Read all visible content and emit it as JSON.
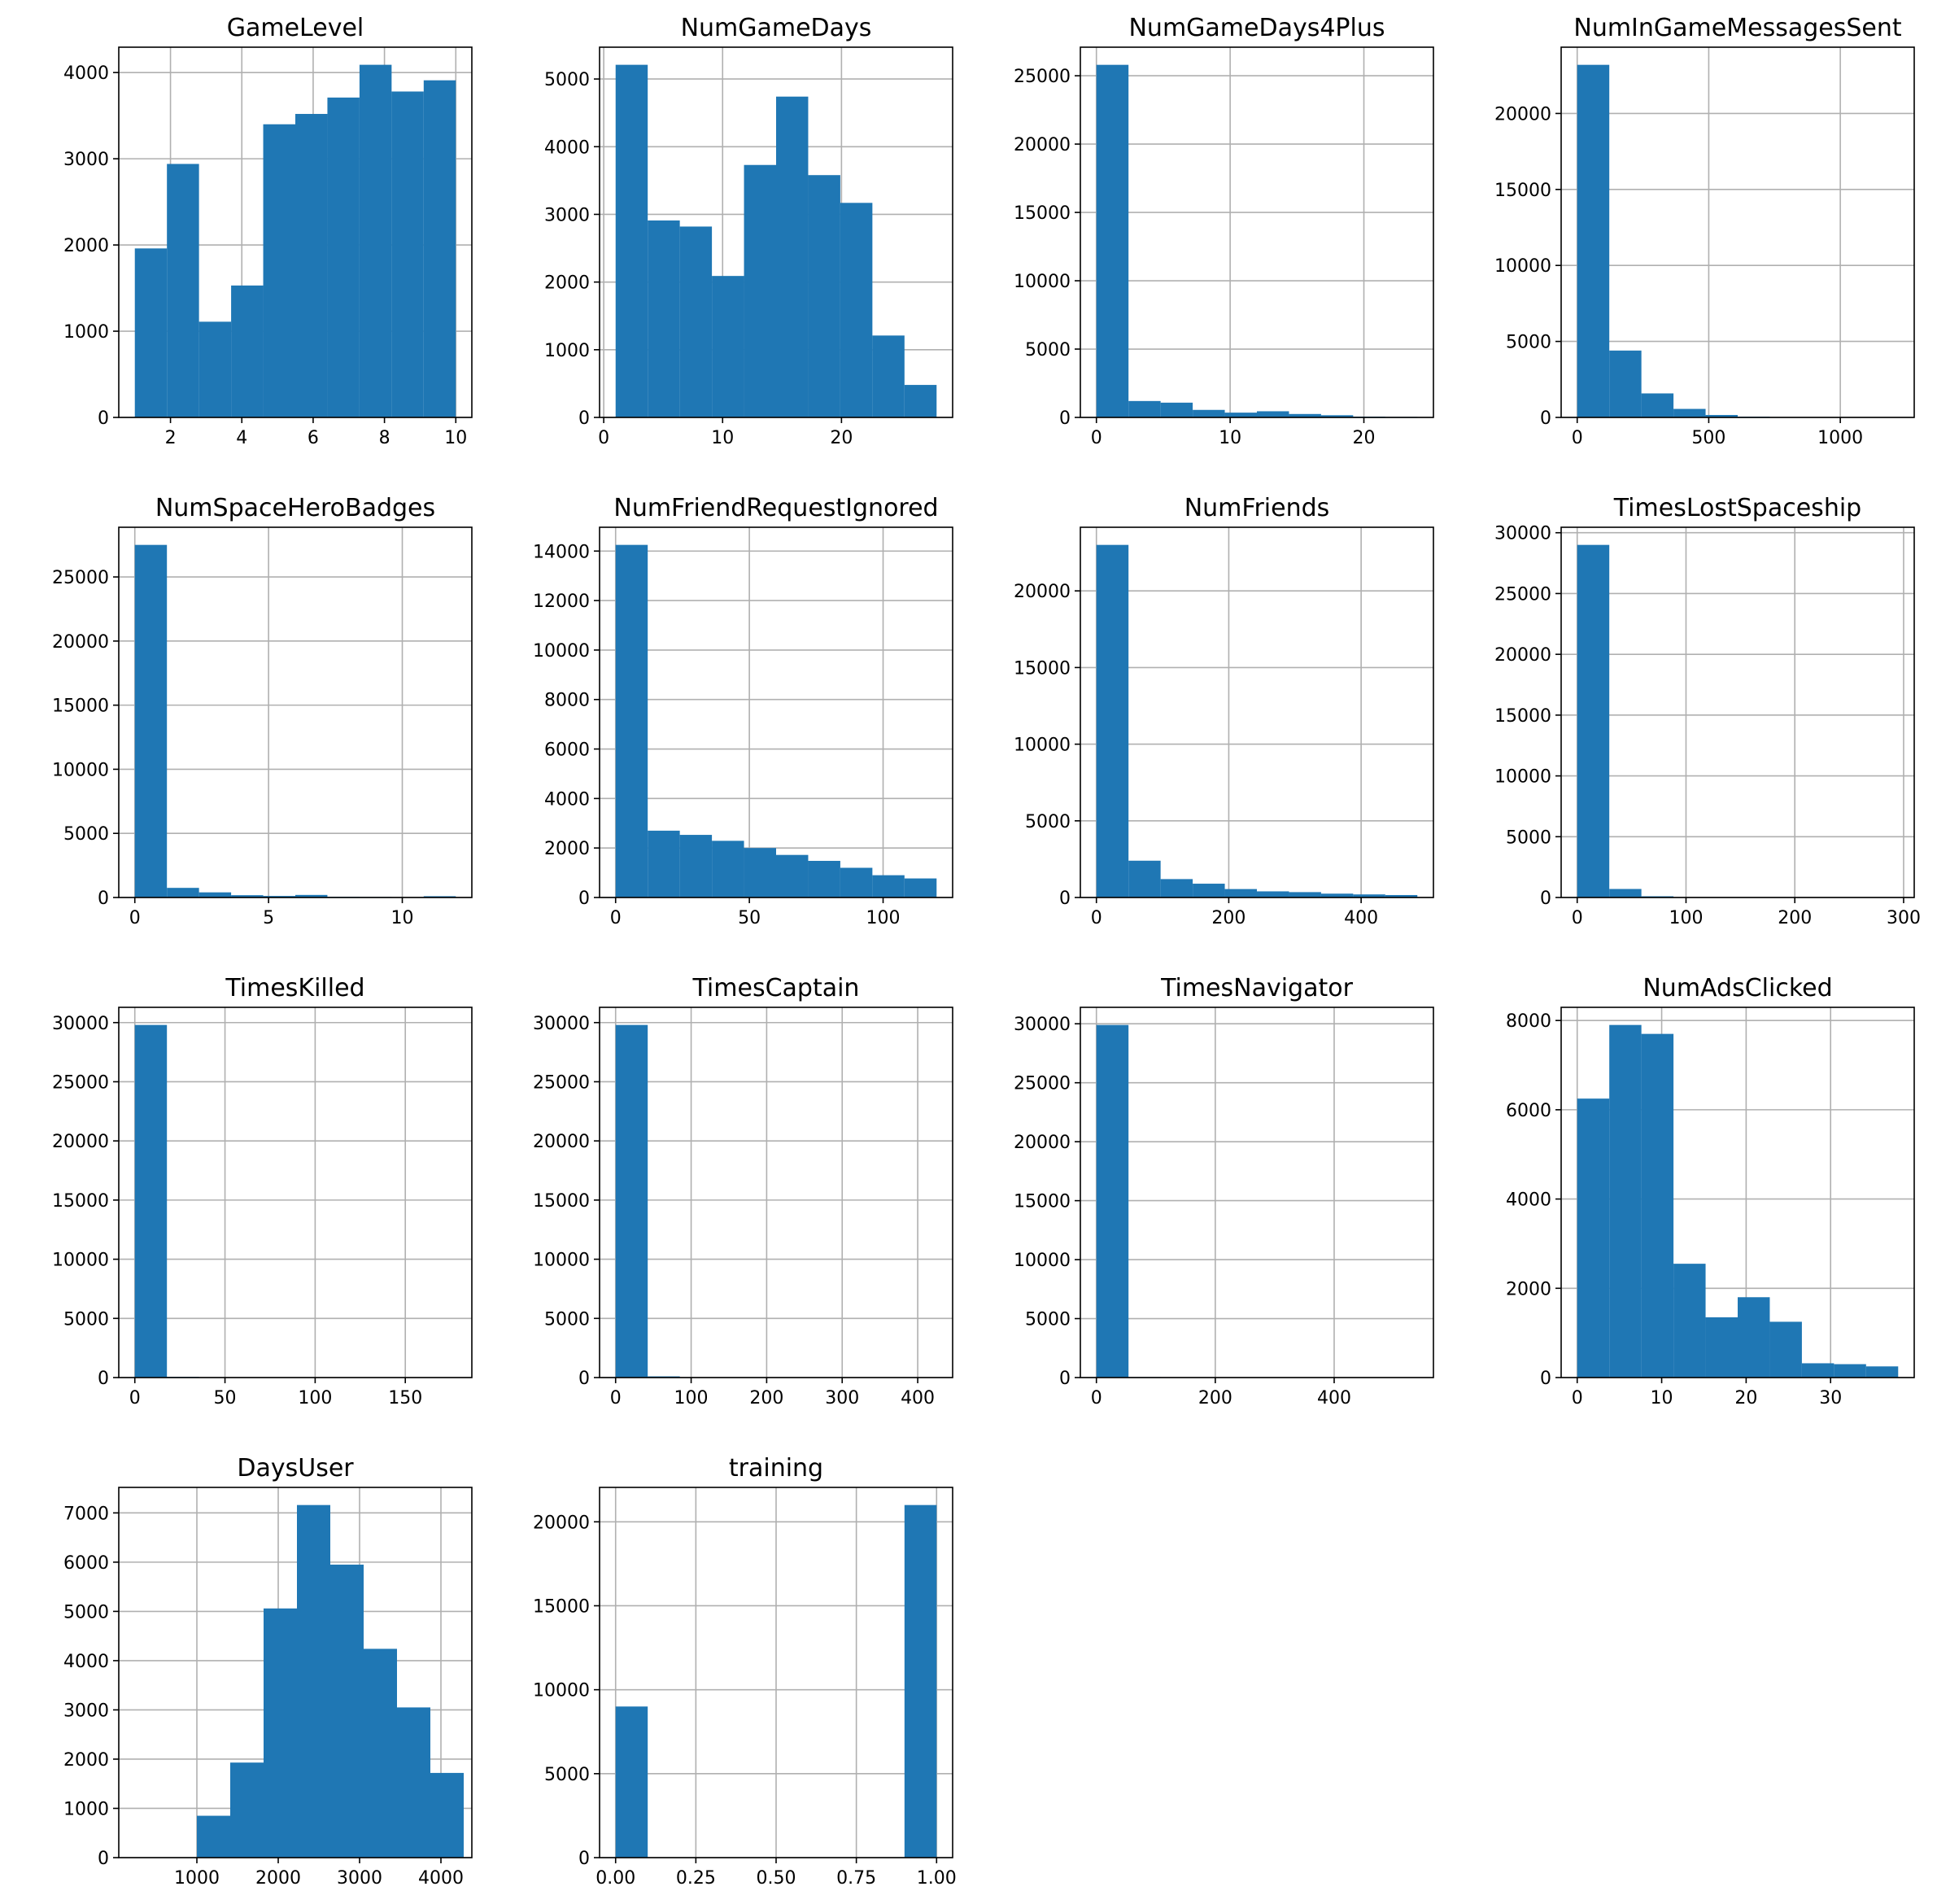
{
  "chart_data": [
    {
      "type": "bar",
      "title": "GameLevel",
      "bin_edges": [
        1,
        1.9,
        2.8,
        3.7,
        4.6,
        5.5,
        6.4,
        7.3,
        8.2,
        9.1,
        10
      ],
      "values": [
        1960,
        2940,
        1110,
        1530,
        3400,
        3520,
        3710,
        4090,
        3780,
        3910
      ],
      "xlim": [
        0.55,
        10.45
      ],
      "ylim": [
        0,
        4294
      ],
      "xticks": [
        2,
        4,
        6,
        8,
        10
      ],
      "yticks": [
        0,
        1000,
        2000,
        3000,
        4000
      ],
      "grid": true
    },
    {
      "type": "bar",
      "title": "NumGameDays",
      "bin_edges": [
        1,
        3.7,
        6.4,
        9.1,
        11.8,
        14.5,
        17.2,
        19.9,
        22.6,
        25.3,
        28
      ],
      "values": [
        5210,
        2910,
        2820,
        2090,
        3730,
        4740,
        3580,
        3170,
        1210,
        480
      ],
      "xlim": [
        -0.35,
        29.35
      ],
      "ylim": [
        0,
        5470
      ],
      "xticks": [
        0,
        10,
        20
      ],
      "yticks": [
        0,
        1000,
        2000,
        3000,
        4000,
        5000
      ],
      "grid": true
    },
    {
      "type": "bar",
      "title": "NumGameDays4Plus",
      "bin_edges": [
        0,
        2.4,
        4.8,
        7.2,
        9.6,
        12,
        14.4,
        16.8,
        19.2,
        21.6,
        24
      ],
      "values": [
        25800,
        1200,
        1080,
        550,
        350,
        450,
        250,
        160,
        60,
        40
      ],
      "xlim": [
        -1.2,
        25.2
      ],
      "ylim": [
        0,
        27090
      ],
      "xticks": [
        0,
        10,
        20
      ],
      "yticks": [
        0,
        5000,
        10000,
        15000,
        20000,
        25000
      ],
      "grid": true
    },
    {
      "type": "bar",
      "title": "NumInGameMessagesSent",
      "bin_edges": [
        0,
        122,
        244,
        366,
        488,
        610,
        732,
        854,
        976,
        1098,
        1220
      ],
      "values": [
        23200,
        4400,
        1580,
        560,
        160,
        50,
        20,
        10,
        5,
        5
      ],
      "xlim": [
        -61,
        1281
      ],
      "ylim": [
        0,
        24360
      ],
      "xticks": [
        0,
        500,
        1000
      ],
      "yticks": [
        0,
        5000,
        10000,
        15000,
        20000
      ],
      "grid": true
    },
    {
      "type": "bar",
      "title": "NumSpaceHeroBadges",
      "bin_edges": [
        0,
        1.2,
        2.4,
        3.6,
        4.8,
        6,
        7.2,
        8.4,
        9.6,
        10.8,
        12
      ],
      "values": [
        27500,
        750,
        400,
        180,
        120,
        200,
        50,
        40,
        30,
        100
      ],
      "xlim": [
        -0.6,
        12.6
      ],
      "ylim": [
        0,
        28875
      ],
      "xticks": [
        0,
        5,
        10
      ],
      "yticks": [
        0,
        5000,
        10000,
        15000,
        20000,
        25000
      ],
      "grid": true
    },
    {
      "type": "bar",
      "title": "NumFriendRequestIgnored",
      "bin_edges": [
        0,
        12,
        24,
        36,
        48,
        60,
        72,
        84,
        96,
        108,
        120
      ],
      "values": [
        14250,
        2700,
        2530,
        2290,
        2000,
        1720,
        1480,
        1200,
        900,
        770
      ],
      "xlim": [
        -6,
        126
      ],
      "ylim": [
        0,
        14962
      ],
      "xticks": [
        0,
        50,
        100
      ],
      "yticks": [
        0,
        2000,
        4000,
        6000,
        8000,
        10000,
        12000,
        14000
      ],
      "grid": true
    },
    {
      "type": "bar",
      "title": "NumFriends",
      "bin_edges": [
        0,
        48.5,
        97,
        145.5,
        194,
        242.5,
        291,
        339.5,
        388,
        436.5,
        485
      ],
      "values": [
        23000,
        2400,
        1200,
        900,
        550,
        400,
        350,
        250,
        200,
        160
      ],
      "xlim": [
        -24.25,
        509.25
      ],
      "ylim": [
        0,
        24150
      ],
      "xticks": [
        0,
        200,
        400
      ],
      "yticks": [
        0,
        5000,
        10000,
        15000,
        20000
      ],
      "grid": true
    },
    {
      "type": "bar",
      "title": "TimesLostSpaceship",
      "bin_edges": [
        0,
        29.5,
        59,
        88.5,
        118,
        147.5,
        177,
        206.5,
        236,
        265.5,
        295
      ],
      "values": [
        29000,
        700,
        100,
        30,
        20,
        10,
        5,
        5,
        5,
        5
      ],
      "xlim": [
        -14.75,
        309.75
      ],
      "ylim": [
        0,
        30450
      ],
      "xticks": [
        0,
        100,
        200,
        300
      ],
      "yticks": [
        0,
        5000,
        10000,
        15000,
        20000,
        25000,
        30000
      ],
      "grid": true
    },
    {
      "type": "bar",
      "title": "TimesKilled",
      "bin_edges": [
        0,
        17.8,
        35.6,
        53.4,
        71.2,
        89,
        106.8,
        124.6,
        142.4,
        160.2,
        178
      ],
      "values": [
        29800,
        60,
        20,
        10,
        5,
        5,
        5,
        5,
        5,
        5
      ],
      "xlim": [
        -8.9,
        186.9
      ],
      "ylim": [
        0,
        31290
      ],
      "xticks": [
        0,
        50,
        100,
        150
      ],
      "yticks": [
        0,
        5000,
        10000,
        15000,
        20000,
        25000,
        30000
      ],
      "grid": true
    },
    {
      "type": "bar",
      "title": "TimesCaptain",
      "bin_edges": [
        0,
        42.5,
        85,
        127.5,
        170,
        212.5,
        255,
        297.5,
        340,
        382.5,
        425
      ],
      "values": [
        29800,
        100,
        20,
        10,
        5,
        5,
        5,
        5,
        5,
        5
      ],
      "xlim": [
        -21.25,
        446.25
      ],
      "ylim": [
        0,
        31290
      ],
      "xticks": [
        0,
        100,
        200,
        300,
        400
      ],
      "yticks": [
        0,
        5000,
        10000,
        15000,
        20000,
        25000,
        30000
      ],
      "grid": true
    },
    {
      "type": "bar",
      "title": "TimesNavigator",
      "bin_edges": [
        0,
        54,
        108,
        162,
        216,
        270,
        324,
        378,
        432,
        486,
        540
      ],
      "values": [
        29900,
        40,
        10,
        5,
        5,
        5,
        5,
        5,
        5,
        5
      ],
      "xlim": [
        -27,
        567
      ],
      "ylim": [
        0,
        31395
      ],
      "xticks": [
        0,
        200,
        400
      ],
      "yticks": [
        0,
        5000,
        10000,
        15000,
        20000,
        25000,
        30000
      ],
      "grid": true
    },
    {
      "type": "bar",
      "title": "NumAdsClicked",
      "bin_edges": [
        0,
        3.8,
        7.6,
        11.4,
        15.2,
        19,
        22.8,
        26.6,
        30.4,
        34.2,
        38
      ],
      "values": [
        6250,
        7900,
        7700,
        2550,
        1350,
        1800,
        1250,
        320,
        300,
        250
      ],
      "xlim": [
        -1.9,
        39.9
      ],
      "ylim": [
        0,
        8295
      ],
      "xticks": [
        0,
        10,
        20,
        30
      ],
      "yticks": [
        0,
        2000,
        4000,
        6000,
        8000
      ],
      "grid": true
    },
    {
      "type": "bar",
      "title": "DaysUser",
      "bin_edges": [
        1000,
        1410,
        1820,
        2230,
        2640,
        3050,
        3460,
        3870,
        4280
      ],
      "values": [
        850,
        1930,
        5060,
        7160,
        5950,
        4240,
        3050,
        1720
      ],
      "xlim": [
        40,
        4380
      ],
      "ylim": [
        0,
        7518
      ],
      "xticks": [
        1000,
        2000,
        3000,
        4000
      ],
      "yticks": [
        0,
        1000,
        2000,
        3000,
        4000,
        5000,
        6000,
        7000
      ],
      "grid": true
    },
    {
      "type": "bar",
      "title": "training",
      "bin_edges": [
        0,
        0.1,
        0.2,
        0.3,
        0.4,
        0.5,
        0.6,
        0.7,
        0.8,
        0.9,
        1.0
      ],
      "values": [
        9000,
        0,
        0,
        0,
        0,
        0,
        0,
        0,
        0,
        21000
      ],
      "xlim": [
        -0.05,
        1.05
      ],
      "ylim": [
        0,
        22050
      ],
      "xticks": [
        0,
        0.25,
        0.5,
        0.75,
        1.0
      ],
      "xtick_labels": [
        "0.00",
        "0.25",
        "0.50",
        "0.75",
        "1.00"
      ],
      "yticks": [
        0,
        5000,
        10000,
        15000,
        20000
      ],
      "grid": true
    }
  ]
}
